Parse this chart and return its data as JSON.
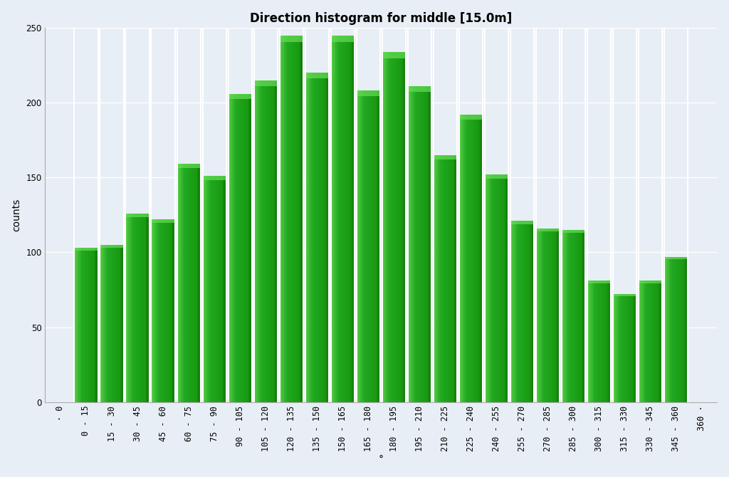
{
  "title": "Direction histogram for middle [15.0m]",
  "xlabel": "°",
  "ylabel": "counts",
  "categories": [
    "· 0",
    "0 - 15",
    "15 - 30",
    "30 - 45",
    "45 - 60",
    "60 - 75",
    "75 - 90",
    "90 - 105",
    "105 - 120",
    "120 - 135",
    "135 - 150",
    "150 - 165",
    "165 - 180",
    "180 - 195",
    "195 - 210",
    "210 - 225",
    "225 - 240",
    "240 - 255",
    "255 - 270",
    "270 - 285",
    "285 - 300",
    "300 - 315",
    "315 - 330",
    "330 - 345",
    "345 - 360",
    "360 ·"
  ],
  "values": [
    0,
    103,
    105,
    126,
    122,
    159,
    151,
    206,
    215,
    245,
    220,
    245,
    208,
    234,
    211,
    165,
    192,
    152,
    121,
    116,
    115,
    81,
    72,
    81,
    97,
    0
  ],
  "bar_color_main": "#22aa22",
  "bar_color_light": "#55cc44",
  "bar_color_dark": "#118811",
  "bar_edge_color": "#ffffff",
  "ylim": [
    0,
    250
  ],
  "yticks": [
    0,
    50,
    100,
    150,
    200,
    250
  ],
  "background_color": "#e8eef5",
  "plot_bg_color": "#e8eef5",
  "grid_color": "#ffffff",
  "title_fontsize": 12,
  "axis_fontsize": 10,
  "tick_fontsize": 8.5
}
